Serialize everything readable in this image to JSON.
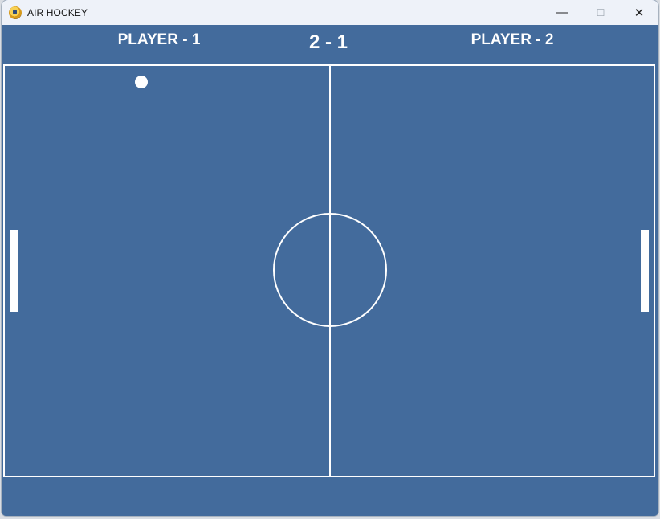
{
  "window": {
    "title": "AIR HOCKEY",
    "icon": "pygame-snake-icon",
    "controls": {
      "minimize": "—",
      "maximize": "☐",
      "close": "✕"
    }
  },
  "game": {
    "player1_label": "PLAYER - 1",
    "player2_label": "PLAYER - 2",
    "score_display": "2  -  1",
    "scores": {
      "player1": 2,
      "player2": 1
    },
    "colors": {
      "field": "#436b9c",
      "lines": "#ffffff",
      "puck": "#ffffff",
      "paddles": "#ffffff"
    }
  }
}
